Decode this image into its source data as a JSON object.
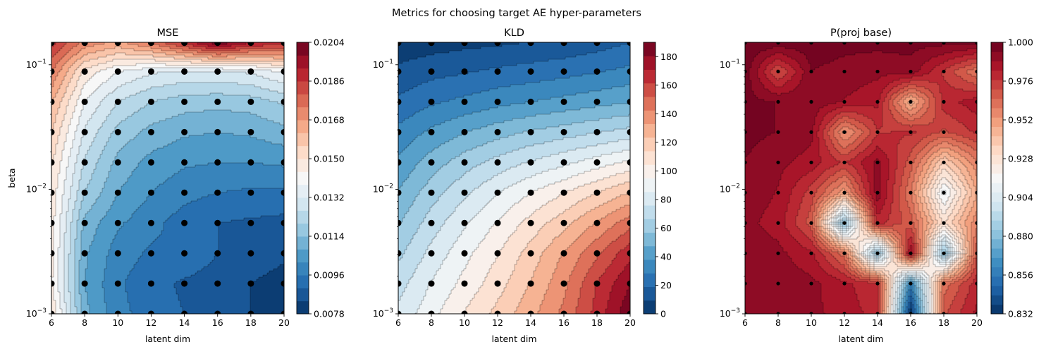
{
  "figure": {
    "suptitle": "Metrics for choosing target AE hyper-parameters"
  },
  "chart_data": [
    {
      "type": "heatmap",
      "subtype": "filled-contour",
      "title": "MSE",
      "xlabel": "latent dim",
      "ylabel": "beta",
      "xlim": [
        6,
        20
      ],
      "ylim_log10": [
        -3,
        -0.82
      ],
      "y_scale": "log",
      "x_ticks": [
        "6",
        "8",
        "10",
        "12",
        "14",
        "16",
        "18",
        "20"
      ],
      "y_ticks": [
        "10^-3",
        "10^-2",
        "10^-1"
      ],
      "colormap": "RdBu_r",
      "colorbar": {
        "range": [
          0.0078,
          0.0204
        ],
        "ticks": [
          "0.0078",
          "0.0096",
          "0.0114",
          "0.0132",
          "0.0150",
          "0.0168",
          "0.0186",
          "0.0204"
        ],
        "levels": 21
      },
      "x_points": [
        6,
        8,
        10,
        12,
        14,
        16,
        18,
        20
      ],
      "beta_points": [
        0.001,
        0.00175,
        0.00306,
        0.00536,
        0.00939,
        0.01643,
        0.02877,
        0.05036,
        0.08816,
        0.15
      ],
      "grid_values": [
        [
          0.015,
          0.011,
          0.0098,
          0.0093,
          0.009,
          0.0088,
          0.0084,
          0.0081
        ],
        [
          0.0145,
          0.0108,
          0.0097,
          0.0092,
          0.0089,
          0.0087,
          0.0084,
          0.0082
        ],
        [
          0.0146,
          0.0109,
          0.0099,
          0.0095,
          0.0095,
          0.009,
          0.0087,
          0.0085
        ],
        [
          0.0147,
          0.0112,
          0.0103,
          0.0098,
          0.0093,
          0.009,
          0.0089,
          0.0088
        ],
        [
          0.0148,
          0.012,
          0.0108,
          0.0102,
          0.0098,
          0.0096,
          0.0095,
          0.0095
        ],
        [
          0.0151,
          0.0125,
          0.0112,
          0.0106,
          0.0103,
          0.0102,
          0.0102,
          0.0103
        ],
        [
          0.0156,
          0.0131,
          0.0118,
          0.0112,
          0.0109,
          0.0108,
          0.0109,
          0.0112
        ],
        [
          0.0163,
          0.0138,
          0.0126,
          0.012,
          0.0117,
          0.0116,
          0.0117,
          0.0121
        ],
        [
          0.0174,
          0.0148,
          0.0138,
          0.0133,
          0.0131,
          0.0131,
          0.0133,
          0.0139
        ],
        [
          0.0188,
          0.0172,
          0.0166,
          0.0175,
          0.0188,
          0.0202,
          0.0192,
          0.019
        ]
      ]
    },
    {
      "type": "heatmap",
      "subtype": "filled-contour",
      "title": "KLD",
      "xlabel": "latent dim",
      "ylabel": "",
      "xlim": [
        6,
        20
      ],
      "ylim_log10": [
        -3,
        -0.82
      ],
      "y_scale": "log",
      "x_ticks": [
        "6",
        "8",
        "10",
        "12",
        "14",
        "16",
        "18",
        "20"
      ],
      "y_ticks": [
        "10^-3",
        "10^-2",
        "10^-1"
      ],
      "colormap": "RdBu_r",
      "colorbar": {
        "range": [
          0,
          190
        ],
        "ticks": [
          "0",
          "20",
          "40",
          "60",
          "80",
          "100",
          "120",
          "140",
          "160",
          "180"
        ],
        "levels": 20
      },
      "x_points": [
        6,
        8,
        10,
        12,
        14,
        16,
        18,
        20
      ],
      "beta_points": [
        0.001,
        0.00175,
        0.00306,
        0.00536,
        0.00939,
        0.01643,
        0.02877,
        0.05036,
        0.08816,
        0.15
      ],
      "grid_values": [
        [
          78,
          92,
          105,
          117,
          130,
          145,
          165,
          188
        ],
        [
          72,
          86,
          98,
          110,
          124,
          140,
          162,
          180
        ],
        [
          64,
          79,
          92,
          104,
          118,
          134,
          150,
          168
        ],
        [
          56,
          71,
          84,
          96,
          108,
          120,
          134,
          148
        ],
        [
          48,
          62,
          74,
          85,
          95,
          104,
          114,
          124
        ],
        [
          40,
          52,
          62,
          70,
          77,
          83,
          90,
          97
        ],
        [
          31,
          40,
          47,
          53,
          58,
          62,
          66,
          70
        ],
        [
          21,
          27,
          31,
          35,
          38,
          41,
          44,
          47
        ],
        [
          12,
          16,
          18,
          21,
          23,
          25,
          28,
          31
        ],
        [
          3,
          5,
          7,
          8,
          10,
          12,
          15,
          19
        ]
      ]
    },
    {
      "type": "heatmap",
      "subtype": "filled-contour",
      "title": "P(proj base)",
      "xlabel": "latent dim",
      "ylabel": "",
      "xlim": [
        6,
        20
      ],
      "ylim_log10": [
        -3,
        -0.82
      ],
      "y_scale": "log",
      "x_ticks": [
        "6",
        "8",
        "10",
        "12",
        "14",
        "16",
        "18",
        "20"
      ],
      "y_ticks": [
        "10^-3",
        "10^-2",
        "10^-1"
      ],
      "colormap": "RdBu_r",
      "colorbar": {
        "range": [
          0.832,
          1.0
        ],
        "ticks": [
          "0.832",
          "0.856",
          "0.880",
          "0.904",
          "0.928",
          "0.952",
          "0.976",
          "1.000"
        ],
        "levels": 29
      },
      "x_points": [
        6,
        8,
        10,
        12,
        14,
        16,
        18,
        20
      ],
      "beta_points": [
        0.001,
        0.00175,
        0.00306,
        0.00536,
        0.00939,
        0.01643,
        0.02877,
        0.05036,
        0.08816,
        0.15
      ],
      "grid_values": [
        [
          0.994,
          0.993,
          0.99,
          0.986,
          0.98,
          0.832,
          0.97,
          0.984
        ],
        [
          0.994,
          0.992,
          0.99,
          0.984,
          0.978,
          0.86,
          0.962,
          0.98
        ],
        [
          0.992,
          0.99,
          0.984,
          0.962,
          0.88,
          0.99,
          0.88,
          0.97
        ],
        [
          0.99,
          0.986,
          0.968,
          0.88,
          0.98,
          0.968,
          0.93,
          0.958
        ],
        [
          0.992,
          0.988,
          0.974,
          0.95,
          0.992,
          0.96,
          0.91,
          0.948
        ],
        [
          0.994,
          0.99,
          0.986,
          0.976,
          0.99,
          0.968,
          0.936,
          0.958
        ],
        [
          0.996,
          0.994,
          0.99,
          0.952,
          0.976,
          0.978,
          0.97,
          0.978
        ],
        [
          0.996,
          0.994,
          0.992,
          0.988,
          0.984,
          0.944,
          0.98,
          0.986
        ],
        [
          0.998,
          0.97,
          0.994,
          0.992,
          0.99,
          0.992,
          0.976,
          0.96
        ],
        [
          0.999,
          0.998,
          0.998,
          0.996,
          0.996,
          0.996,
          0.996,
          0.996
        ]
      ]
    }
  ]
}
